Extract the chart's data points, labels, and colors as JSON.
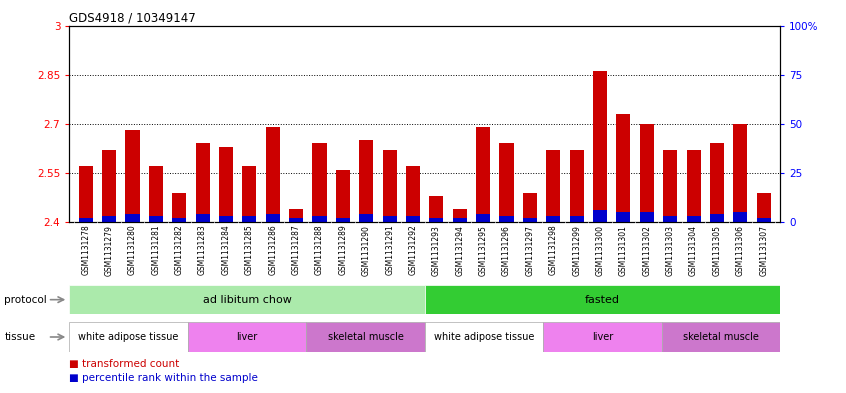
{
  "title": "GDS4918 / 10349147",
  "samples": [
    "GSM1131278",
    "GSM1131279",
    "GSM1131280",
    "GSM1131281",
    "GSM1131282",
    "GSM1131283",
    "GSM1131284",
    "GSM1131285",
    "GSM1131286",
    "GSM1131287",
    "GSM1131288",
    "GSM1131289",
    "GSM1131290",
    "GSM1131291",
    "GSM1131292",
    "GSM1131293",
    "GSM1131294",
    "GSM1131295",
    "GSM1131296",
    "GSM1131297",
    "GSM1131298",
    "GSM1131299",
    "GSM1131300",
    "GSM1131301",
    "GSM1131302",
    "GSM1131303",
    "GSM1131304",
    "GSM1131305",
    "GSM1131306",
    "GSM1131307"
  ],
  "red_values": [
    2.57,
    2.62,
    2.68,
    2.57,
    2.49,
    2.64,
    2.63,
    2.57,
    2.69,
    2.44,
    2.64,
    2.56,
    2.65,
    2.62,
    2.57,
    2.48,
    2.44,
    2.69,
    2.64,
    2.49,
    2.62,
    2.62,
    2.86,
    2.73,
    2.7,
    2.62,
    2.62,
    2.64,
    2.7,
    2.49
  ],
  "percentile_values": [
    2,
    3,
    4,
    3,
    2,
    4,
    3,
    3,
    4,
    2,
    3,
    2,
    4,
    3,
    3,
    2,
    2,
    4,
    3,
    2,
    3,
    3,
    6,
    5,
    5,
    3,
    3,
    4,
    5,
    2
  ],
  "ylim_left": [
    2.4,
    3.0
  ],
  "ylim_right": [
    0,
    100
  ],
  "yticks_left": [
    2.4,
    2.55,
    2.7,
    2.85,
    3.0
  ],
  "yticks_right": [
    0,
    25,
    50,
    75,
    100
  ],
  "ytick_labels_left": [
    "2.4",
    "2.55",
    "2.7",
    "2.85",
    "3"
  ],
  "ytick_labels_right": [
    "0",
    "25",
    "50",
    "75",
    "100%"
  ],
  "gridlines": [
    2.55,
    2.7,
    2.85
  ],
  "protocol_groups": [
    {
      "label": "ad libitum chow",
      "start": 0,
      "end": 14,
      "color": "#abeaab"
    },
    {
      "label": "fasted",
      "start": 15,
      "end": 29,
      "color": "#33cc33"
    }
  ],
  "tissue_groups": [
    {
      "label": "white adipose tissue",
      "start": 0,
      "end": 4,
      "color": "#FFFFFF"
    },
    {
      "label": "liver",
      "start": 5,
      "end": 9,
      "color": "#EE82EE"
    },
    {
      "label": "skeletal muscle",
      "start": 10,
      "end": 14,
      "color": "#CC77CC"
    },
    {
      "label": "white adipose tissue",
      "start": 15,
      "end": 19,
      "color": "#FFFFFF"
    },
    {
      "label": "liver",
      "start": 20,
      "end": 24,
      "color": "#EE82EE"
    },
    {
      "label": "skeletal muscle",
      "start": 25,
      "end": 29,
      "color": "#CC77CC"
    }
  ],
  "bar_color_red": "#cc0000",
  "bar_color_blue": "#0000cc",
  "bar_width": 0.6,
  "base_value": 2.4,
  "yrange": 0.6
}
